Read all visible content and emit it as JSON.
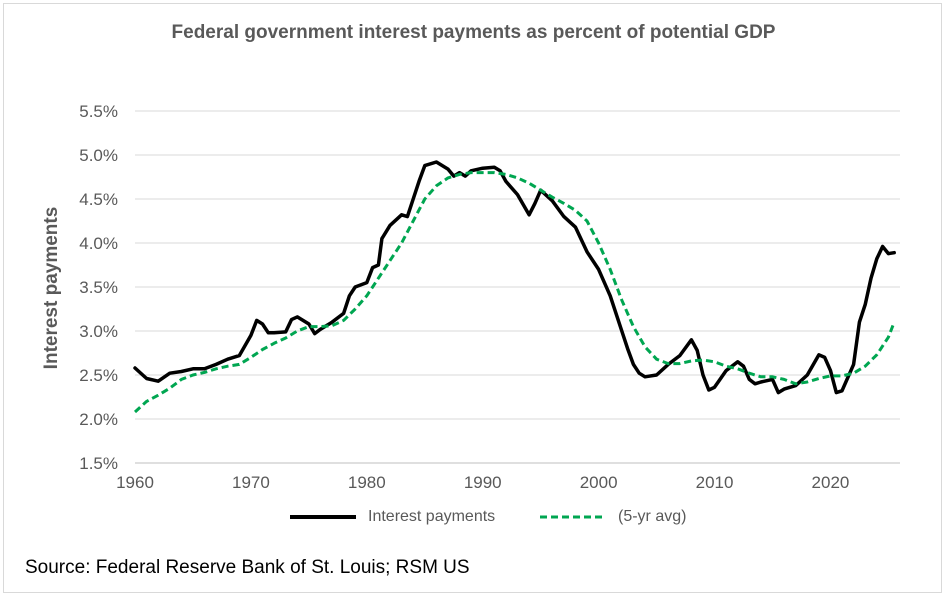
{
  "chart_data": {
    "type": "line",
    "title": "Federal government interest payments as percent of potential GDP",
    "xlabel": "",
    "ylabel": "Interest payments",
    "xlim": [
      1960,
      2026
    ],
    "ylim": [
      1.5,
      5.5
    ],
    "x_ticks": [
      1960,
      1970,
      1980,
      1990,
      2000,
      2010,
      2020
    ],
    "y_ticks": [
      1.5,
      2.0,
      2.5,
      3.0,
      3.5,
      4.0,
      4.5,
      5.0,
      5.5
    ],
    "y_tick_labels": [
      "1.5%",
      "2.0%",
      "2.5%",
      "3.0%",
      "3.5%",
      "4.0%",
      "4.5%",
      "5.0%",
      "5.5%"
    ],
    "x_tick_labels": [
      "1960",
      "1970",
      "1980",
      "1990",
      "2000",
      "2010",
      "2020"
    ],
    "gridlines": "horizontal",
    "legend_position": "bottom",
    "series": [
      {
        "name": "Interest payments",
        "color": "#000000",
        "dash": "solid",
        "points": [
          [
            1960,
            2.58
          ],
          [
            1961,
            2.46
          ],
          [
            1962,
            2.43
          ],
          [
            1963,
            2.52
          ],
          [
            1964,
            2.54
          ],
          [
            1965,
            2.57
          ],
          [
            1966,
            2.57
          ],
          [
            1967,
            2.62
          ],
          [
            1968,
            2.68
          ],
          [
            1969,
            2.72
          ],
          [
            1970,
            2.95
          ],
          [
            1970.5,
            3.12
          ],
          [
            1971,
            3.08
          ],
          [
            1971.5,
            2.98
          ],
          [
            1972,
            2.98
          ],
          [
            1973,
            2.99
          ],
          [
            1973.5,
            3.13
          ],
          [
            1974,
            3.16
          ],
          [
            1975,
            3.08
          ],
          [
            1975.5,
            2.97
          ],
          [
            1976,
            3.02
          ],
          [
            1977,
            3.1
          ],
          [
            1978,
            3.2
          ],
          [
            1978.5,
            3.4
          ],
          [
            1979,
            3.5
          ],
          [
            1980,
            3.55
          ],
          [
            1980.5,
            3.72
          ],
          [
            1981,
            3.75
          ],
          [
            1981.3,
            4.05
          ],
          [
            1982,
            4.2
          ],
          [
            1983,
            4.32
          ],
          [
            1983.5,
            4.3
          ],
          [
            1984,
            4.5
          ],
          [
            1984.5,
            4.7
          ],
          [
            1985,
            4.88
          ],
          [
            1986,
            4.92
          ],
          [
            1987,
            4.84
          ],
          [
            1987.5,
            4.76
          ],
          [
            1988,
            4.8
          ],
          [
            1988.5,
            4.76
          ],
          [
            1989,
            4.82
          ],
          [
            1990,
            4.85
          ],
          [
            1991,
            4.86
          ],
          [
            1991.5,
            4.82
          ],
          [
            1992,
            4.7
          ],
          [
            1993,
            4.55
          ],
          [
            1994,
            4.32
          ],
          [
            1994.5,
            4.45
          ],
          [
            1995,
            4.6
          ],
          [
            1996,
            4.48
          ],
          [
            1997,
            4.3
          ],
          [
            1998,
            4.18
          ],
          [
            1999,
            3.9
          ],
          [
            2000,
            3.7
          ],
          [
            2001,
            3.4
          ],
          [
            2002,
            3.0
          ],
          [
            2002.5,
            2.8
          ],
          [
            2003,
            2.62
          ],
          [
            2003.5,
            2.52
          ],
          [
            2004,
            2.48
          ],
          [
            2005,
            2.5
          ],
          [
            2006,
            2.62
          ],
          [
            2007,
            2.72
          ],
          [
            2008,
            2.9
          ],
          [
            2008.5,
            2.78
          ],
          [
            2009,
            2.5
          ],
          [
            2009.5,
            2.33
          ],
          [
            2010,
            2.36
          ],
          [
            2011,
            2.55
          ],
          [
            2012,
            2.65
          ],
          [
            2012.5,
            2.6
          ],
          [
            2013,
            2.45
          ],
          [
            2013.5,
            2.4
          ],
          [
            2014,
            2.42
          ],
          [
            2015,
            2.45
          ],
          [
            2015.5,
            2.3
          ],
          [
            2016,
            2.34
          ],
          [
            2017,
            2.38
          ],
          [
            2018,
            2.5
          ],
          [
            2019,
            2.73
          ],
          [
            2019.5,
            2.7
          ],
          [
            2020,
            2.55
          ],
          [
            2020.5,
            2.3
          ],
          [
            2021,
            2.32
          ],
          [
            2022,
            2.62
          ],
          [
            2022.5,
            3.1
          ],
          [
            2023,
            3.3
          ],
          [
            2023.5,
            3.6
          ],
          [
            2024,
            3.82
          ],
          [
            2024.5,
            3.96
          ],
          [
            2025,
            3.88
          ],
          [
            2025.5,
            3.89
          ]
        ]
      },
      {
        "name": "(5-yr avg)",
        "color": "#00A651",
        "dash": "dashed",
        "points": [
          [
            1960,
            2.08
          ],
          [
            1961,
            2.2
          ],
          [
            1962,
            2.27
          ],
          [
            1963,
            2.35
          ],
          [
            1964,
            2.45
          ],
          [
            1965,
            2.5
          ],
          [
            1966,
            2.53
          ],
          [
            1967,
            2.57
          ],
          [
            1968,
            2.6
          ],
          [
            1969,
            2.62
          ],
          [
            1970,
            2.7
          ],
          [
            1971,
            2.79
          ],
          [
            1972,
            2.86
          ],
          [
            1973,
            2.92
          ],
          [
            1974,
            3.0
          ],
          [
            1975,
            3.05
          ],
          [
            1976,
            3.05
          ],
          [
            1977,
            3.06
          ],
          [
            1978,
            3.12
          ],
          [
            1979,
            3.25
          ],
          [
            1980,
            3.4
          ],
          [
            1981,
            3.6
          ],
          [
            1982,
            3.8
          ],
          [
            1983,
            4.0
          ],
          [
            1984,
            4.25
          ],
          [
            1985,
            4.5
          ],
          [
            1986,
            4.65
          ],
          [
            1987,
            4.74
          ],
          [
            1988,
            4.78
          ],
          [
            1989,
            4.8
          ],
          [
            1990,
            4.8
          ],
          [
            1991,
            4.8
          ],
          [
            1992,
            4.78
          ],
          [
            1993,
            4.74
          ],
          [
            1994,
            4.68
          ],
          [
            1995,
            4.6
          ],
          [
            1996,
            4.52
          ],
          [
            1997,
            4.45
          ],
          [
            1998,
            4.37
          ],
          [
            1999,
            4.25
          ],
          [
            2000,
            4.0
          ],
          [
            2001,
            3.7
          ],
          [
            2002,
            3.35
          ],
          [
            2003,
            3.05
          ],
          [
            2004,
            2.82
          ],
          [
            2005,
            2.68
          ],
          [
            2006,
            2.63
          ],
          [
            2007,
            2.63
          ],
          [
            2008,
            2.66
          ],
          [
            2009,
            2.67
          ],
          [
            2010,
            2.65
          ],
          [
            2011,
            2.6
          ],
          [
            2012,
            2.57
          ],
          [
            2013,
            2.52
          ],
          [
            2014,
            2.48
          ],
          [
            2015,
            2.48
          ],
          [
            2016,
            2.45
          ],
          [
            2017,
            2.4
          ],
          [
            2018,
            2.42
          ],
          [
            2019,
            2.46
          ],
          [
            2020,
            2.49
          ],
          [
            2021,
            2.49
          ],
          [
            2022,
            2.52
          ],
          [
            2023,
            2.6
          ],
          [
            2024,
            2.73
          ],
          [
            2025,
            2.93
          ],
          [
            2025.5,
            3.1
          ]
        ]
      }
    ]
  },
  "legend": {
    "items": [
      {
        "label": "Interest payments",
        "color": "#000000"
      },
      {
        "label": "(5-yr avg)",
        "color": "#00A651"
      }
    ]
  },
  "source": "Source: Federal Reserve Bank of St. Louis; RSM US"
}
